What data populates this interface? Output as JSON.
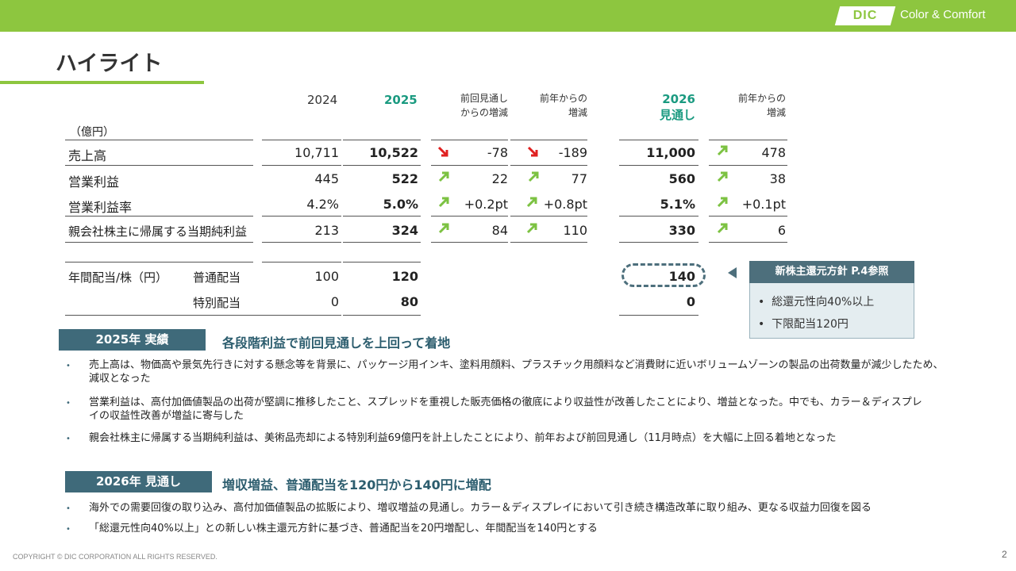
{
  "header": {
    "logo_text": "DIC",
    "brand": "Color & Comfort"
  },
  "title": "ハイライト",
  "table": {
    "unit": "（億円）",
    "col_2024": "2024",
    "col_2025": "2025",
    "col_vs_prev_forecast": [
      "前回見通し",
      "からの増減"
    ],
    "col_yoy": [
      "前年からの",
      "増減"
    ],
    "col_2026": [
      "2026",
      "見通し"
    ],
    "col_yoy_2026": [
      "前年からの",
      "増減"
    ],
    "rows": [
      {
        "label": "売上高",
        "v2024": "10,711",
        "v2025": "10,522",
        "dprev": "-78",
        "dprev_dir": "down",
        "dyoy": "-189",
        "dyoy_dir": "down",
        "v2026": "11,000",
        "d2026": "478",
        "d2026_dir": "up"
      },
      {
        "label": "営業利益",
        "v2024": "445",
        "v2025": "522",
        "dprev": "22",
        "dprev_dir": "up",
        "dyoy": "77",
        "dyoy_dir": "up",
        "v2026": "560",
        "d2026": "38",
        "d2026_dir": "up"
      },
      {
        "label": "営業利益率",
        "v2024": "4.2%",
        "v2025": "5.0%",
        "dprev": "+0.2pt",
        "dprev_dir": "up",
        "dyoy": "+0.8pt",
        "dyoy_dir": "up",
        "v2026": "5.1%",
        "d2026": "+0.1pt",
        "d2026_dir": "up"
      },
      {
        "label": "親会社株主に帰属する当期純利益",
        "v2024": "213",
        "v2025": "324",
        "dprev": "84",
        "dprev_dir": "up",
        "dyoy": "110",
        "dyoy_dir": "up",
        "v2026": "330",
        "d2026": "6",
        "d2026_dir": "up"
      }
    ],
    "dividend_label": "年間配当/株（円）",
    "dividends": [
      {
        "label": "普通配当",
        "v2024": "100",
        "v2025": "120",
        "v2026": "140"
      },
      {
        "label": "特別配当",
        "v2024": "0",
        "v2025": "80",
        "v2026": "0"
      }
    ],
    "colors": {
      "highlight": "#1a9a80",
      "up_arrow": "#7cc242",
      "down_arrow": "#e02020"
    }
  },
  "callout": {
    "title": "新株主還元方針 P.4参照",
    "items": [
      "総還元性向40%以上",
      "下限配当120円"
    ]
  },
  "section1": {
    "label": "2025年  実績",
    "heading": "各段階利益で前回見通しを上回って着地",
    "bullets": [
      "売上高は、物価高や景気先行きに対する懸念等を背景に、パッケージ用インキ、塗料用顔料、プラスチック用顔料など消費財に近いボリュームゾーンの製品の出荷数量が減少したため、減収となった",
      "営業利益は、高付加価値製品の出荷が堅調に推移したこと、スプレッドを重視した販売価格の徹底により収益性が改善したことにより、増益となった。中でも、カラー＆ディスプレイの収益性改善が増益に寄与した",
      "親会社株主に帰属する当期純利益は、美術品売却による特別利益69億円を計上したことにより、前年および前回見通し（11月時点）を大幅に上回る着地となった"
    ]
  },
  "section2": {
    "label": "2026年  見通し",
    "heading": "増収増益、普通配当を120円から140円に増配",
    "bullets": [
      "海外での需要回復の取り込み、高付加価値製品の拡販により、増収増益の見通し。カラー＆ディスプレイにおいて引き続き構造改革に取り組み、更なる収益力回復を図る",
      "「総還元性向40%以上」との新しい株主還元方針に基づき、普通配当を20円増配し、年間配当を140円とする"
    ]
  },
  "footer": {
    "copyright": "COPYRIGHT © DIC CORPORATION ALL RIGHTS RESERVED.",
    "page": "2"
  }
}
